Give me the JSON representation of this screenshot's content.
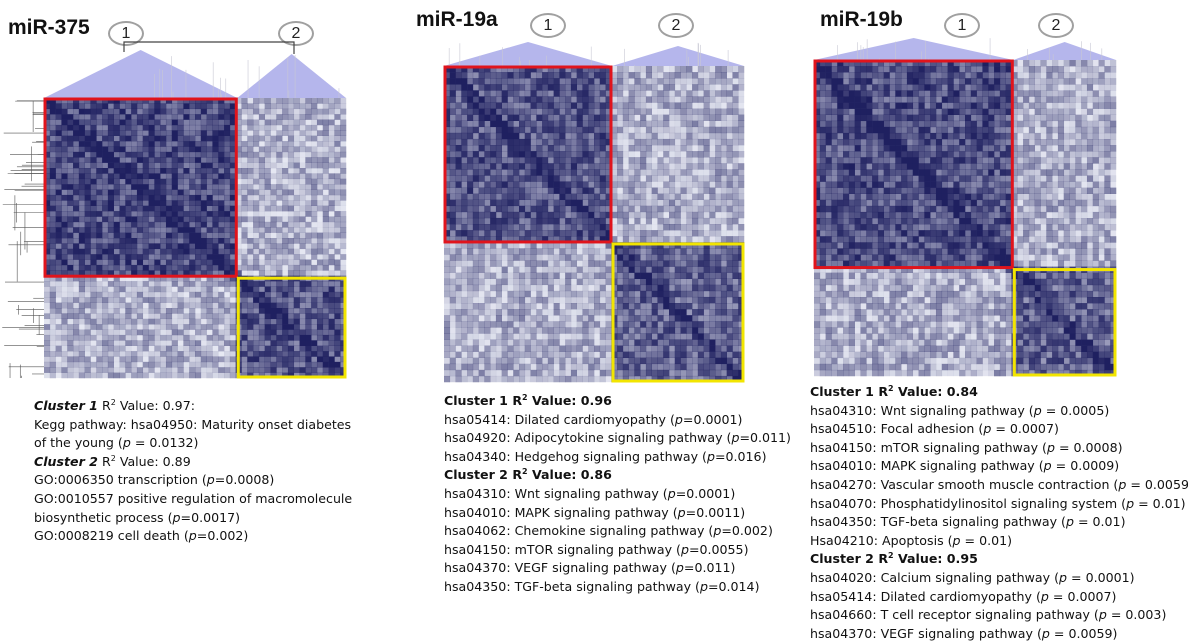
{
  "panels": [
    {
      "title": "miR-375",
      "cluster_labels": [
        "1",
        "2"
      ],
      "text": {
        "c1_header": "Cluster 1",
        "c1_r2_rest": " Value: 0.97:",
        "kegg_l1": "Kegg pathway: hsa04950: Maturity onset diabetes",
        "kegg_l2_pre": "of the young  (",
        "kegg_l2_val": " = 0.0132)",
        "c2_header": "Cluster 2",
        "c2_r2_rest": " Value: 0.89",
        "go1_pre": "GO:0006350 transcription (",
        "go1_val": "=0.0008)",
        "go2_l1": "GO:0010557 positive regulation of macromolecule",
        "go2_l2_pre": "biosynthetic process (",
        "go2_l2_val": "=0.0017)",
        "go3_pre": "GO:0008219 cell death (",
        "go3_val": "=0.002)"
      }
    },
    {
      "title": "miR-19a",
      "cluster_labels": [
        "1",
        "2"
      ],
      "c1_header": "Cluster 1 R",
      "c1_value": " Value: 0.96",
      "c1_items": [
        {
          "pre": "hsa05414: Dilated cardiomyopathy (",
          "val": "=0.0001)"
        },
        {
          "pre": "hsa04920: Adipocytokine signaling pathway (",
          "val": "=0.011)"
        },
        {
          "pre": "hsa04340: Hedgehog signaling pathway (",
          "val": "=0.016)"
        }
      ],
      "c2_header": "Cluster 2 R",
      "c2_value": " Value: 0.86",
      "c2_items": [
        {
          "pre": "hsa04310: Wnt signaling pathway (",
          "val": "=0.0001)"
        },
        {
          "pre": "hsa04010: MAPK signaling pathway (",
          "val": "=0.0011)"
        },
        {
          "pre": "hsa04062: Chemokine signaling pathway (",
          "val": "=0.002)"
        },
        {
          "pre": "hsa04150: mTOR signaling pathway (",
          "val": "=0.0055)"
        },
        {
          "pre": "hsa04370: VEGF signaling pathway (",
          "val": "=0.011)"
        },
        {
          "pre": "hsa04350: TGF-beta signaling pathway (",
          "val": "=0.014)"
        }
      ]
    },
    {
      "title": "miR-19b",
      "cluster_labels": [
        "1",
        "2"
      ],
      "c1_header": "Cluster 1 R",
      "c1_value": " Value: 0.84",
      "c1_items": [
        {
          "pre": "hsa04310: Wnt signaling pathway (",
          "val": " = 0.0005)"
        },
        {
          "pre": "hsa04510: Focal adhesion (",
          "val": " = 0.0007)"
        },
        {
          "pre": "hsa04150: mTOR signaling pathway (",
          "val": " = 0.0008)"
        },
        {
          "pre": "hsa04010: MAPK signaling pathway (",
          "val": " = 0.0009)"
        },
        {
          "pre": "hsa04270: Vascular smooth muscle contraction (",
          "val": " = 0.0059)"
        },
        {
          "pre": "hsa04070: Phosphatidylinositol signaling system (",
          "val": " = 0.01)"
        },
        {
          "pre": "hsa04350: TGF-beta signaling pathway (",
          "val": " = 0.01)"
        },
        {
          "pre": "Hsa04210: Apoptosis (",
          "val": " = 0.01)"
        }
      ],
      "c2_header": "Cluster 2 R",
      "c2_value": " Value: 0.95",
      "c2_items": [
        {
          "pre": "hsa04020: Calcium signaling pathway (",
          "val": " = 0.0001)"
        },
        {
          "pre": "hsa05414: Dilated cardiomyopathy (",
          "val": " = 0.0007)"
        },
        {
          "pre": "hsa04660: T cell receptor signaling pathway (",
          "val": " = 0.003)"
        },
        {
          "pre": "hsa04370: VEGF signaling pathway (",
          "val": " = 0.0059)"
        }
      ]
    }
  ],
  "common": {
    "r_letter": "R",
    "r_sup": "2",
    "p": "p"
  },
  "colors": {
    "heat_dark": "#1f2060",
    "heat_light": "#ffffff",
    "cluster1_box": "#e0141c",
    "cluster2_box": "#f2e500",
    "dendro_fill": "#9c9ee6"
  }
}
